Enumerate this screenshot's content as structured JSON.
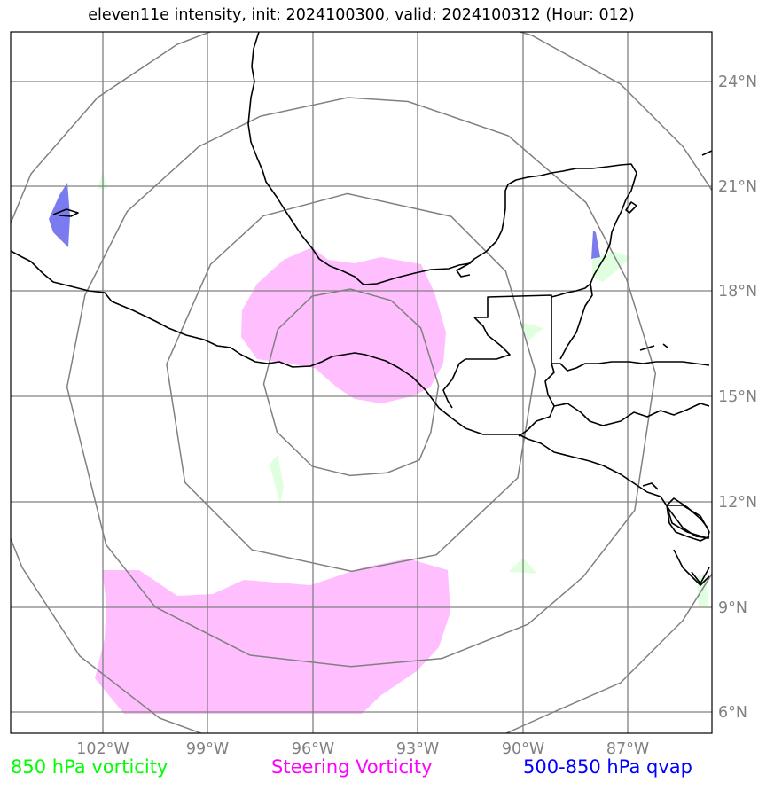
{
  "title": "eleven11e intensity, init: 2024100300, valid: 2024100312 (Hour: 012)",
  "map": {
    "lat_labels": [
      "24°N",
      "21°N",
      "18°N",
      "15°N",
      "12°N",
      "9°N",
      "6°N"
    ],
    "lon_labels": [
      "102°W",
      "99°W",
      "96°W",
      "93°W",
      "90°W",
      "87°W"
    ],
    "colors": {
      "vort850": "#00ff00",
      "steering": "#ff00ff",
      "qvap": "#0000ff",
      "steering_fill": "#ffbfff",
      "vort850_fill": "#dfffdf",
      "qvap_fill": "#7b7bf0",
      "grid": "#808080",
      "coast": "#000000"
    }
  },
  "legend": {
    "vort850": "850 hPa vorticity",
    "steering": "Steering Vorticity",
    "qvap": "500-850 hPa qvap"
  }
}
